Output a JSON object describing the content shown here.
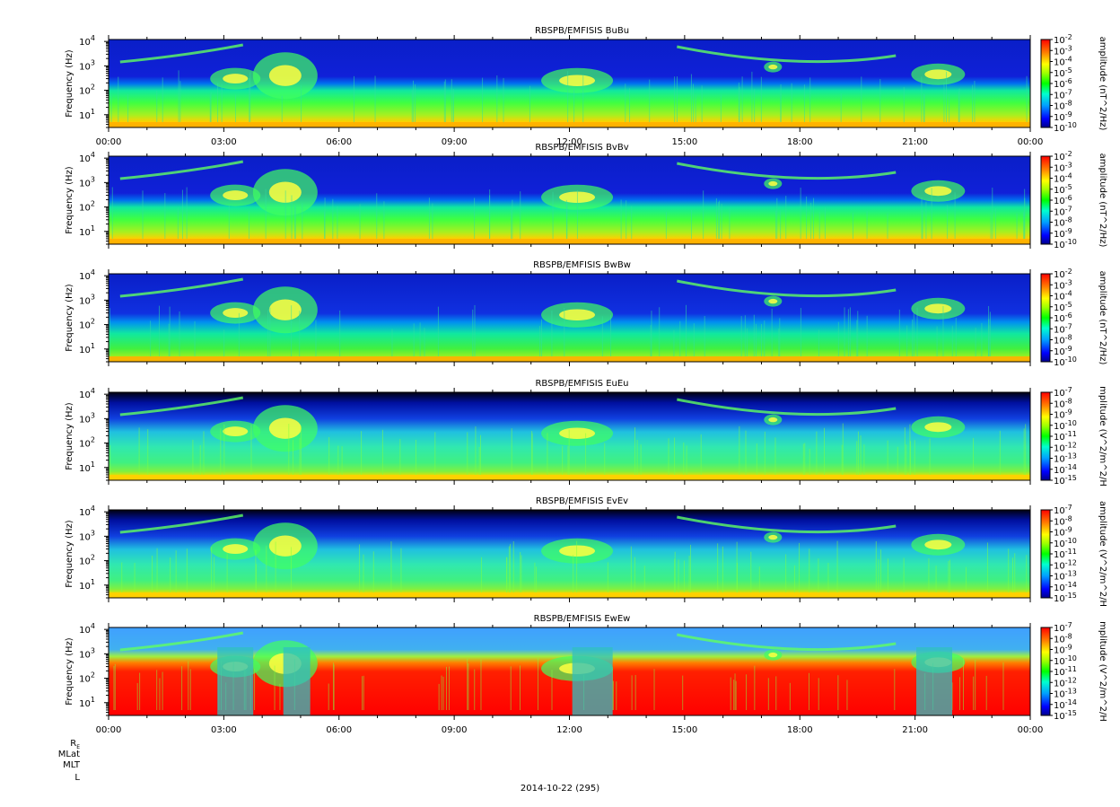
{
  "figure": {
    "date_label": "2014-10-22 (295)",
    "ephemeris_labels": [
      "MLat",
      "MLT",
      "L"
    ],
    "ephemeris_re_main": "R",
    "ephemeris_re_sub": "E"
  },
  "chart_data": [
    {
      "type": "heatmap",
      "title": "RBSPB/EMFISIS  BuBu",
      "ylabel": "Frequency (Hz)",
      "x_ticks": [
        "00:00",
        "03:00",
        "06:00",
        "09:00",
        "12:00",
        "15:00",
        "18:00",
        "21:00",
        "00:00"
      ],
      "y_ticks": [
        {
          "base": "10",
          "exp": "1"
        },
        {
          "base": "10",
          "exp": "2"
        },
        {
          "base": "10",
          "exp": "3"
        },
        {
          "base": "10",
          "exp": "4"
        }
      ],
      "ylim": [
        3,
        12000
      ],
      "yscale": "log",
      "colorbar_label": "amplitude (nT^2/Hz)",
      "colorbar_ticks": [
        "-2",
        "-3",
        "-4",
        "-5",
        "-6",
        "-7",
        "-8",
        "-9",
        "-10"
      ],
      "colorbar_range": [
        -10,
        -2
      ]
    },
    {
      "type": "heatmap",
      "title": "RBSPB/EMFISIS  BvBv",
      "ylabel": "Frequency (Hz)",
      "x_ticks": [],
      "y_ticks": [
        {
          "base": "10",
          "exp": "1"
        },
        {
          "base": "10",
          "exp": "2"
        },
        {
          "base": "10",
          "exp": "3"
        },
        {
          "base": "10",
          "exp": "4"
        }
      ],
      "ylim": [
        3,
        12000
      ],
      "yscale": "log",
      "colorbar_label": "amplitude (nT^2/Hz)",
      "colorbar_ticks": [
        "-2",
        "-3",
        "-4",
        "-5",
        "-6",
        "-7",
        "-8",
        "-9",
        "-10"
      ],
      "colorbar_range": [
        -10,
        -2
      ]
    },
    {
      "type": "heatmap",
      "title": "RBSPB/EMFISIS  BwBw",
      "ylabel": "Frequency (Hz)",
      "x_ticks": [],
      "y_ticks": [
        {
          "base": "10",
          "exp": "1"
        },
        {
          "base": "10",
          "exp": "2"
        },
        {
          "base": "10",
          "exp": "3"
        },
        {
          "base": "10",
          "exp": "4"
        }
      ],
      "ylim": [
        3,
        12000
      ],
      "yscale": "log",
      "colorbar_label": "amplitude (nT^2/Hz)",
      "colorbar_ticks": [
        "-2",
        "-3",
        "-4",
        "-5",
        "-6",
        "-7",
        "-8",
        "-9",
        "-10"
      ],
      "colorbar_range": [
        -10,
        -2
      ]
    },
    {
      "type": "heatmap",
      "title": "RBSPB/EMFISIS  EuEu",
      "ylabel": "Frequency (Hz)",
      "x_ticks": [],
      "y_ticks": [
        {
          "base": "10",
          "exp": "1"
        },
        {
          "base": "10",
          "exp": "2"
        },
        {
          "base": "10",
          "exp": "3"
        },
        {
          "base": "10",
          "exp": "4"
        }
      ],
      "ylim": [
        3,
        12000
      ],
      "yscale": "log",
      "colorbar_label": "mplitude (V^2/m^2/H",
      "colorbar_ticks": [
        "-7",
        "-8",
        "-9",
        "-10",
        "-11",
        "-12",
        "-13",
        "-14",
        "-15"
      ],
      "colorbar_range": [
        -15,
        -7
      ]
    },
    {
      "type": "heatmap",
      "title": "RBSPB/EMFISIS  EvEv",
      "ylabel": "Frequency (Hz)",
      "x_ticks": [],
      "y_ticks": [
        {
          "base": "10",
          "exp": "1"
        },
        {
          "base": "10",
          "exp": "2"
        },
        {
          "base": "10",
          "exp": "3"
        },
        {
          "base": "10",
          "exp": "4"
        }
      ],
      "ylim": [
        3,
        12000
      ],
      "yscale": "log",
      "colorbar_label": "amplitude (V^2/m^2/H",
      "colorbar_ticks": [
        "-7",
        "-8",
        "-9",
        "-10",
        "-11",
        "-12",
        "-13",
        "-14",
        "-15"
      ],
      "colorbar_range": [
        -15,
        -7
      ]
    },
    {
      "type": "heatmap",
      "title": "RBSPB/EMFISIS  EwEw",
      "ylabel": "Frequency (Hz)",
      "x_ticks": [
        "00:00",
        "03:00",
        "06:00",
        "09:00",
        "12:00",
        "15:00",
        "18:00",
        "21:00",
        "00:00"
      ],
      "y_ticks": [
        {
          "base": "10",
          "exp": "1"
        },
        {
          "base": "10",
          "exp": "2"
        },
        {
          "base": "10",
          "exp": "3"
        },
        {
          "base": "10",
          "exp": "4"
        }
      ],
      "ylim": [
        3,
        12000
      ],
      "yscale": "log",
      "colorbar_label": "mplitude (V^2/m^2/H",
      "colorbar_ticks": [
        "-7",
        "-8",
        "-9",
        "-10",
        "-11",
        "-12",
        "-13",
        "-14",
        "-15"
      ],
      "colorbar_range": [
        -15,
        -7
      ]
    }
  ]
}
